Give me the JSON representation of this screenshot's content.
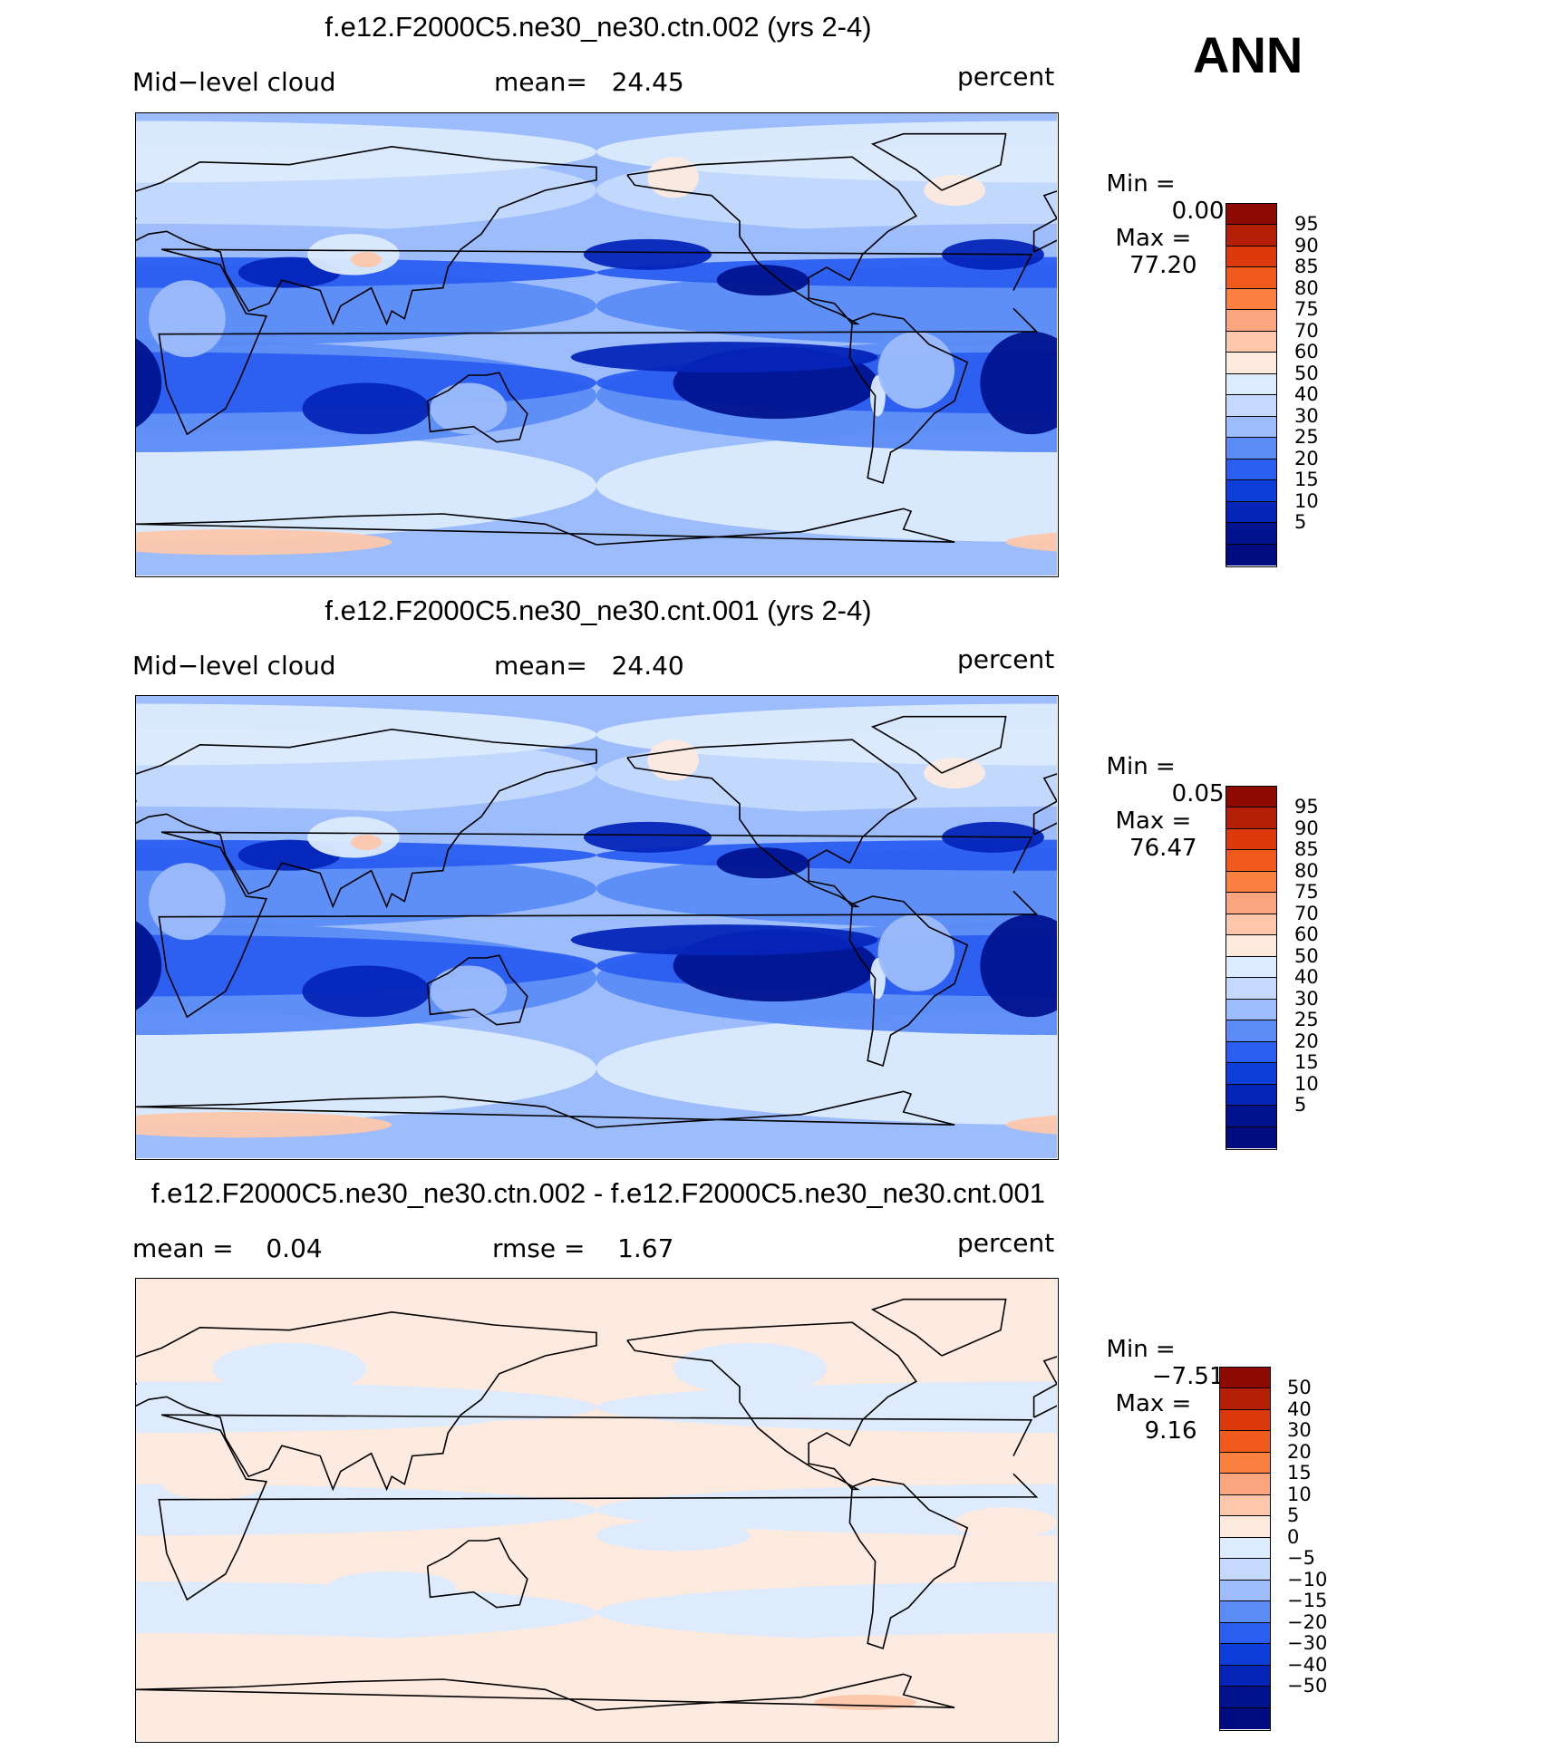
{
  "season": "ANN",
  "colors": {
    "abs": [
      "#000b80",
      "#00138f",
      "#0525b8",
      "#0e3ed9",
      "#2a5ef0",
      "#5b8cf6",
      "#9dbcfb",
      "#c4d9fd",
      "#dcebfd",
      "#fdeadf",
      "#fcc7ab",
      "#fba57e",
      "#f9803f",
      "#f05a1d",
      "#dc3a0c",
      "#b51f05",
      "#8c0a00"
    ],
    "diff": [
      "#000b80",
      "#00138f",
      "#0525b8",
      "#0e3ed9",
      "#2a5ef0",
      "#5b8cf6",
      "#9dbcfb",
      "#c4d9fd",
      "#dcebfd",
      "#fdeadf",
      "#fcc7ab",
      "#fba57e",
      "#f9803f",
      "#f05a1d",
      "#dc3a0c",
      "#b51f05",
      "#8c0a00"
    ],
    "land_line": "#000000"
  },
  "chart_data": [
    {
      "type": "map",
      "title": "f.e12.F2000C5.ne30_ne30.ctn.002 (yrs 2-4)",
      "field": "Mid−level cloud",
      "stat1": "mean=   24.45",
      "units": "percent",
      "min_label": "Min =",
      "min_value": "0.00",
      "max_label": "Max =",
      "max_value": "77.20",
      "mean": 24.45,
      "min": 0.0,
      "max": 77.2,
      "colorbar_levels": [
        "95",
        "90",
        "85",
        "80",
        "75",
        "70",
        "60",
        "50",
        "40",
        "30",
        "25",
        "20",
        "15",
        "10",
        "5"
      ]
    },
    {
      "type": "map",
      "title": "f.e12.F2000C5.ne30_ne30.cnt.001 (yrs 2-4)",
      "field": "Mid−level cloud",
      "stat1": "mean=   24.40",
      "units": "percent",
      "min_label": "Min =",
      "min_value": "0.05",
      "max_label": "Max =",
      "max_value": "76.47",
      "mean": 24.4,
      "min": 0.05,
      "max": 76.47,
      "colorbar_levels": [
        "95",
        "90",
        "85",
        "80",
        "75",
        "70",
        "60",
        "50",
        "40",
        "30",
        "25",
        "20",
        "15",
        "10",
        "5"
      ]
    },
    {
      "type": "map",
      "title": "f.e12.F2000C5.ne30_ne30.ctn.002 - f.e12.F2000C5.ne30_ne30.cnt.001",
      "field": "mean =    0.04",
      "stat1": "rmse =    1.67",
      "units": "percent",
      "min_label": "Min =",
      "min_value": "−7.51",
      "max_label": "Max =",
      "max_value": "9.16",
      "mean": 0.04,
      "rmse": 1.67,
      "min": -7.51,
      "max": 9.16,
      "colorbar_levels": [
        "50",
        "40",
        "30",
        "20",
        "15",
        "10",
        "5",
        "0",
        "−5",
        "−10",
        "−15",
        "−20",
        "−30",
        "−40",
        "−50"
      ]
    }
  ]
}
